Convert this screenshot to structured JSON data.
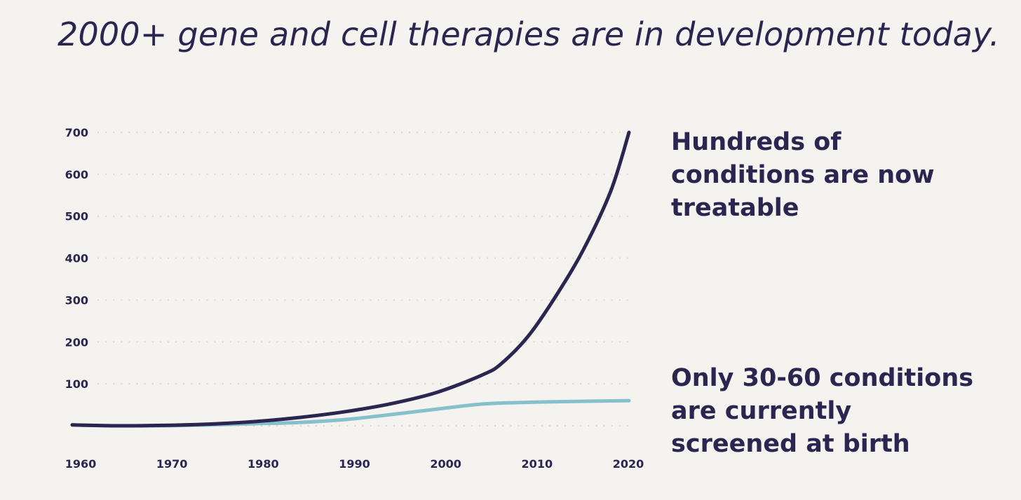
{
  "title": "2000+ gene and cell therapies are in development today.",
  "annotations": {
    "treatable": [
      "Hundreds of",
      "conditions are now",
      "treatable"
    ],
    "screened": [
      "Only 30-60 conditions",
      "are currently",
      "screened at birth"
    ]
  },
  "colors": {
    "background": "#f5f3ef",
    "text": "#2b2650",
    "treatable_line": "#2b2650",
    "screened_line": "#86c0cc",
    "grid": "#dcd8cf"
  },
  "chart_data": {
    "type": "line",
    "title": "2000+ gene and cell therapies are in development today.",
    "xlabel": "",
    "ylabel": "",
    "xlim": [
      1960,
      2021
    ],
    "ylim": [
      -10,
      700
    ],
    "x_ticks": [
      "1960",
      "1970",
      "1980",
      "1990",
      "2000",
      "2010",
      "2020"
    ],
    "y_ticks": [
      "100",
      "200",
      "300",
      "400",
      "500",
      "600",
      "700"
    ],
    "grid": true,
    "grid_style": "dotted horizontal",
    "series": [
      {
        "key": "treatable",
        "x": [
          1960,
          1965,
          1970,
          1975,
          1980,
          1985,
          1990,
          1995,
          2000,
          2005,
          2007,
          2010,
          2013,
          2016,
          2019,
          2021
        ],
        "y": [
          2,
          0,
          1,
          4,
          10,
          20,
          34,
          53,
          80,
          122,
          148,
          215,
          310,
          420,
          560,
          700
        ]
      },
      {
        "key": "screened",
        "x": [
          1960,
          1965,
          1970,
          1975,
          1980,
          1985,
          1990,
          1995,
          2000,
          2005,
          2010,
          2015,
          2021
        ],
        "y": [
          2,
          0,
          0,
          2,
          5,
          8,
          15,
          27,
          40,
          52,
          56,
          58,
          60
        ]
      }
    ]
  }
}
